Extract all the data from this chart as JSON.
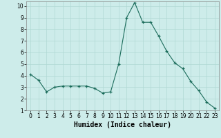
{
  "x": [
    0,
    1,
    2,
    3,
    4,
    5,
    6,
    7,
    8,
    9,
    10,
    11,
    12,
    13,
    14,
    15,
    16,
    17,
    18,
    19,
    20,
    21,
    22,
    23
  ],
  "y": [
    4.1,
    3.6,
    2.6,
    3.0,
    3.1,
    3.1,
    3.1,
    3.1,
    2.9,
    2.5,
    2.6,
    5.0,
    9.0,
    10.3,
    8.6,
    8.6,
    7.4,
    6.1,
    5.1,
    4.6,
    3.5,
    2.7,
    1.7,
    1.2
  ],
  "xlabel": "Humidex (Indice chaleur)",
  "xlim_lo": -0.5,
  "xlim_hi": 23.5,
  "ylim_lo": 1.0,
  "ylim_hi": 10.4,
  "yticks": [
    1,
    2,
    3,
    4,
    5,
    6,
    7,
    8,
    9,
    10
  ],
  "xticks": [
    0,
    1,
    2,
    3,
    4,
    5,
    6,
    7,
    8,
    9,
    10,
    11,
    12,
    13,
    14,
    15,
    16,
    17,
    18,
    19,
    20,
    21,
    22,
    23
  ],
  "line_color": "#1a6b5a",
  "marker": "+",
  "bg_color": "#cdecea",
  "grid_color": "#b0d8d4",
  "tick_label_fontsize": 5.5,
  "xlabel_fontsize": 7.0
}
